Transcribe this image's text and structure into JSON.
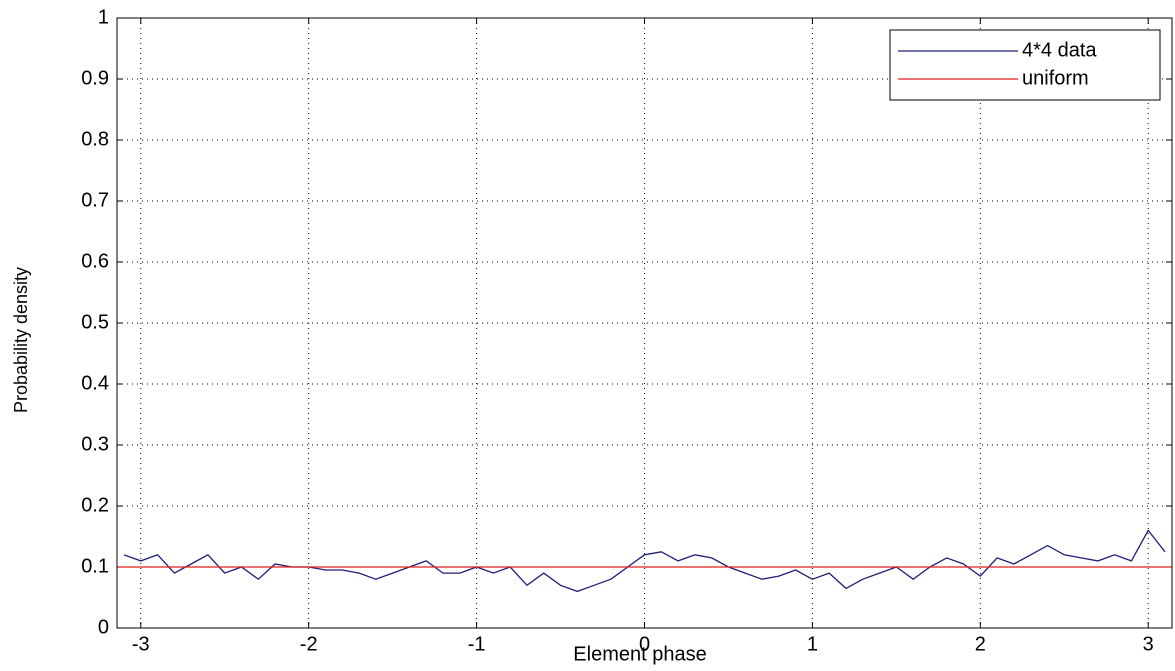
{
  "chart_data": {
    "type": "line",
    "xlabel": "Element phase",
    "ylabel": "Probability density",
    "xlim": [
      -3.1416,
      3.1416
    ],
    "ylim": [
      0,
      1
    ],
    "xticks": [
      -3,
      -2,
      -1,
      0,
      1,
      2,
      3
    ],
    "yticks": [
      0,
      0.1,
      0.2,
      0.3,
      0.4,
      0.5,
      0.6,
      0.7,
      0.8,
      0.9,
      1
    ],
    "grid": true,
    "legend": "upper right",
    "series": [
      {
        "name": "4*4 data",
        "color": "#1f1f7a",
        "x": [
          -3.1,
          -3.0,
          -2.9,
          -2.8,
          -2.7,
          -2.6,
          -2.5,
          -2.4,
          -2.3,
          -2.2,
          -2.1,
          -2.0,
          -1.9,
          -1.8,
          -1.7,
          -1.6,
          -1.5,
          -1.4,
          -1.3,
          -1.2,
          -1.1,
          -1.0,
          -0.9,
          -0.8,
          -0.7,
          -0.6,
          -0.5,
          -0.4,
          -0.3,
          -0.2,
          -0.1,
          0.0,
          0.1,
          0.2,
          0.3,
          0.4,
          0.5,
          0.6,
          0.7,
          0.8,
          0.9,
          1.0,
          1.1,
          1.2,
          1.3,
          1.4,
          1.5,
          1.6,
          1.7,
          1.8,
          1.9,
          2.0,
          2.1,
          2.2,
          2.3,
          2.4,
          2.5,
          2.6,
          2.7,
          2.8,
          2.9,
          3.0,
          3.1
        ],
        "values": [
          0.12,
          0.11,
          0.12,
          0.09,
          0.105,
          0.12,
          0.09,
          0.1,
          0.08,
          0.105,
          0.1,
          0.1,
          0.095,
          0.095,
          0.09,
          0.08,
          0.09,
          0.1,
          0.11,
          0.09,
          0.09,
          0.1,
          0.09,
          0.1,
          0.07,
          0.09,
          0.07,
          0.06,
          0.07,
          0.08,
          0.1,
          0.12,
          0.125,
          0.11,
          0.12,
          0.115,
          0.1,
          0.09,
          0.08,
          0.085,
          0.095,
          0.08,
          0.09,
          0.065,
          0.08,
          0.09,
          0.1,
          0.08,
          0.1,
          0.115,
          0.105,
          0.085,
          0.115,
          0.105,
          0.12,
          0.135,
          0.12,
          0.115,
          0.11,
          0.12,
          0.11,
          0.16,
          0.125
        ]
      },
      {
        "name": "uniform",
        "color": "#e0201b",
        "x": [
          -3.1416,
          3.1416
        ],
        "values": [
          0.1,
          0.1
        ]
      }
    ]
  }
}
